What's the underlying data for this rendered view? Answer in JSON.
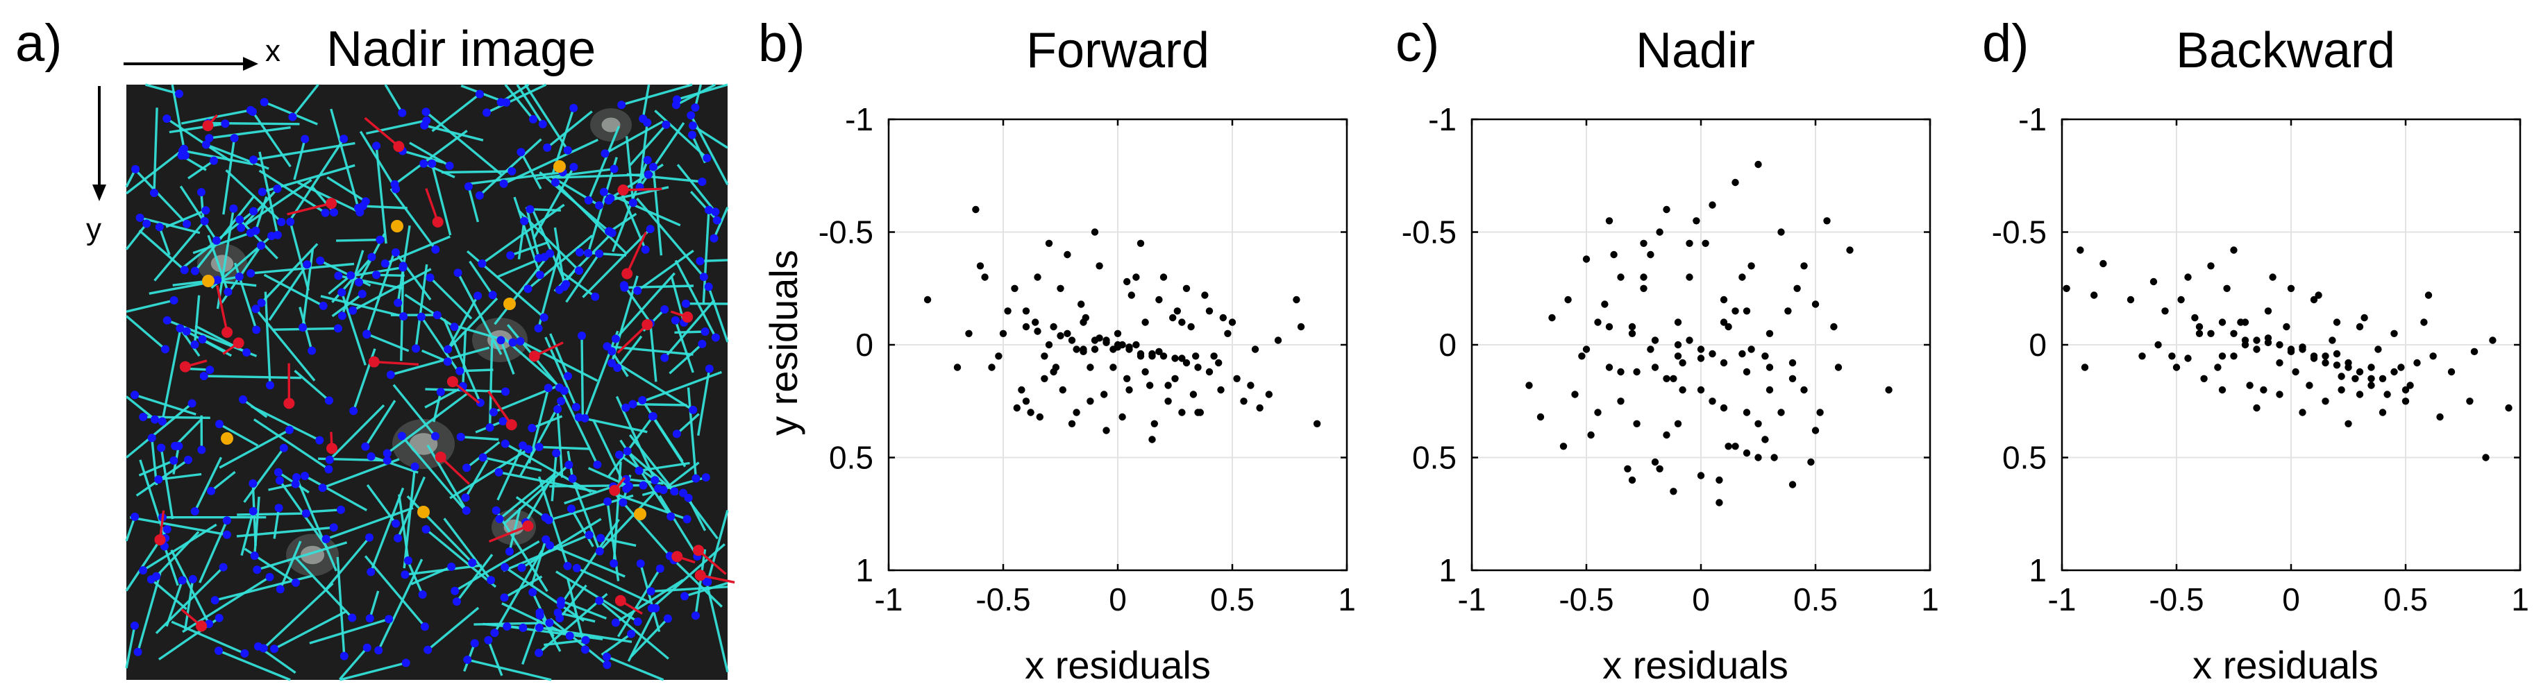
{
  "figure": {
    "panel_labels": [
      "a)",
      "b)",
      "c)",
      "d)"
    ],
    "image_panel": {
      "title": "Nadir image",
      "x_arrow_label": "x",
      "y_arrow_label": "y",
      "colors": {
        "background": "#1c1d1c",
        "vectors": "#34e0d8",
        "points": "#1414ff",
        "red_points": "#e0152a",
        "orange_points": "#f2a900"
      }
    }
  },
  "chart_data": [
    {
      "type": "scatter",
      "title": "Forward",
      "xlabel": "x residuals",
      "ylabel": "y residuals",
      "xlim": [
        -1,
        1
      ],
      "ylim": [
        -1,
        1
      ],
      "y_reversed": true,
      "xticks": [
        -1,
        -0.5,
        0,
        0.5,
        1
      ],
      "yticks": [
        -1,
        -0.5,
        0,
        0.5,
        1
      ],
      "xtick_labels": [
        "-1",
        "-0.5",
        "0",
        "0.5",
        "1"
      ],
      "ytick_labels": [
        "-1",
        "-0.5",
        "0",
        "0.5",
        "1"
      ],
      "grid": true,
      "point_color": "#000000",
      "x": [
        -0.83,
        -0.62,
        -0.6,
        -0.58,
        -0.52,
        -0.45,
        -0.4,
        -0.38,
        -0.3,
        -0.27,
        -0.22,
        -0.2,
        -0.15,
        -0.12,
        -0.1,
        -0.05,
        0.0,
        0.05,
        0.1,
        0.15,
        0.2,
        0.25,
        0.3,
        0.35,
        0.4,
        0.45,
        0.5,
        0.55,
        0.62,
        0.78,
        0.8,
        0.87,
        -0.55,
        -0.5,
        -0.42,
        -0.35,
        -0.32,
        -0.25,
        -0.18,
        -0.08,
        0.02,
        0.08,
        0.12,
        0.18,
        0.22,
        0.28,
        0.33,
        0.38,
        0.42,
        0.48,
        0.52,
        0.6,
        -0.48,
        -0.4,
        -0.36,
        -0.28,
        -0.24,
        -0.16,
        -0.06,
        0.04,
        0.14,
        0.24,
        0.34,
        0.44,
        0.46,
        0.28,
        -0.1,
        -0.2,
        0.1,
        0.2,
        -0.3,
        0.0,
        0.3,
        -0.4,
        0.4,
        0.05,
        -0.15,
        0.15,
        -0.05,
        0.25,
        -0.25,
        0.35,
        -0.35,
        0.58,
        0.66,
        0.7,
        -0.65,
        -0.7,
        -0.44,
        -0.34,
        -0.14,
        0.06,
        0.16,
        0.26,
        0.36,
        0.04,
        -0.02,
        -0.12,
        0.22,
        0.32,
        -0.22,
        -0.32,
        0.12,
        -0.02,
        0.08,
        -0.08,
        0.18,
        -0.18,
        0.28,
        -0.28,
        0.02,
        0.1,
        -0.1,
        0.0,
        0.05,
        -0.05,
        0.15,
        -0.15
      ],
      "y": [
        -0.2,
        -0.6,
        -0.35,
        -0.3,
        0.05,
        -0.25,
        -0.15,
        0.3,
        -0.45,
        0.1,
        -0.4,
        0.35,
        -0.1,
        0.25,
        -0.5,
        0.38,
        -0.05,
        0.2,
        -0.45,
        0.42,
        -0.3,
        0.15,
        -0.25,
        0.3,
        -0.15,
        0.2,
        -0.1,
        0.25,
        0.28,
        -0.2,
        -0.08,
        0.35,
        0.1,
        -0.05,
        0.2,
        -0.3,
        0.15,
        -0.25,
        0.3,
        -0.35,
        0.32,
        -0.3,
        0.12,
        -0.2,
        0.25,
        -0.1,
        0.22,
        -0.22,
        0.05,
        -0.05,
        0.15,
        0.02,
        -0.15,
        0.25,
        -0.1,
        0.12,
        0.2,
        -0.18,
        0.22,
        -0.28,
        0.18,
        -0.12,
        0.05,
        0.08,
        -0.12,
        0.3,
        0.02,
        -0.02,
        0.05,
        0.05,
        0.0,
        0.0,
        0.08,
        -0.08,
        0.12,
        0.02,
        0.02,
        0.04,
        -0.02,
        0.06,
        -0.04,
        0.1,
        -0.06,
        0.18,
        0.22,
        -0.02,
        -0.05,
        0.1,
        0.28,
        0.32,
        -0.12,
        -0.22,
        0.35,
        -0.15,
        0.3,
        0.15,
        0.1,
        0.1,
        0.18,
        -0.08,
        -0.05,
        0.05,
        -0.1,
        0.02,
        0.0,
        -0.03,
        0.03,
        0.02,
        0.06,
        -0.08,
        0.0,
        0.04,
        -0.02,
        0.01,
        0.01,
        -0.01,
        0.05,
        0.03
      ]
    },
    {
      "type": "scatter",
      "title": "Nadir",
      "xlabel": "x residuals",
      "ylabel": "",
      "xlim": [
        -1,
        1
      ],
      "ylim": [
        -1,
        1
      ],
      "y_reversed": true,
      "xticks": [
        -1,
        -0.5,
        0,
        0.5,
        1
      ],
      "yticks": [
        -1,
        -0.5,
        0,
        0.5,
        1
      ],
      "xtick_labels": [
        "-1",
        "-0.5",
        "0",
        "0.5",
        "1"
      ],
      "ytick_labels": [
        "-1",
        "-0.5",
        "0",
        "0.5",
        "1"
      ],
      "grid": true,
      "point_color": "#000000",
      "x": [
        -0.75,
        -0.7,
        -0.65,
        -0.6,
        -0.55,
        -0.5,
        -0.45,
        -0.4,
        -0.35,
        -0.3,
        -0.25,
        -0.2,
        -0.15,
        -0.1,
        -0.05,
        0.0,
        0.05,
        0.1,
        0.15,
        0.2,
        0.25,
        0.3,
        0.35,
        0.4,
        0.45,
        0.5,
        0.55,
        0.6,
        0.65,
        0.82,
        -0.58,
        -0.48,
        -0.38,
        -0.28,
        -0.18,
        -0.08,
        0.02,
        0.12,
        0.22,
        0.32,
        0.42,
        0.52,
        -0.52,
        -0.42,
        -0.32,
        -0.22,
        -0.12,
        -0.02,
        0.08,
        0.18,
        0.28,
        0.38,
        0.48,
        0.58,
        -0.35,
        -0.25,
        -0.15,
        -0.05,
        0.05,
        0.15,
        0.25,
        -0.3,
        -0.2,
        -0.1,
        0.0,
        0.1,
        0.2,
        0.3,
        -0.4,
        0.4,
        -0.45,
        0.45,
        -0.5,
        0.5,
        -0.15,
        0.15,
        -0.25,
        0.25,
        -0.35,
        0.35,
        0.0,
        -0.05,
        0.05,
        -0.1,
        0.1,
        -0.2,
        0.2,
        -0.3,
        0.3,
        -0.4,
        0.4,
        0.1,
        -0.1,
        0.2,
        0.22,
        0.28,
        -0.28,
        -0.18,
        0.08,
        -0.08,
        0.12,
        -0.12,
        0.18,
        0.0,
        -0.22
      ],
      "y": [
        0.18,
        0.32,
        -0.12,
        0.45,
        0.22,
        -0.38,
        0.3,
        -0.55,
        0.12,
        0.6,
        -0.3,
        0.52,
        -0.6,
        0.35,
        -0.45,
        0.58,
        -0.62,
        0.28,
        -0.72,
        0.48,
        -0.8,
        0.2,
        -0.5,
        0.62,
        -0.35,
        0.38,
        -0.55,
        0.1,
        -0.42,
        0.2,
        -0.2,
        0.4,
        -0.4,
        0.35,
        -0.5,
        0.2,
        -0.45,
        0.45,
        -0.35,
        0.5,
        -0.25,
        0.3,
        0.05,
        -0.18,
        0.55,
        -0.4,
        0.65,
        -0.55,
        0.7,
        -0.3,
        0.42,
        -0.15,
        0.52,
        -0.08,
        0.25,
        -0.25,
        0.15,
        -0.3,
        0.25,
        -0.15,
        0.35,
        -0.08,
        0.1,
        -0.1,
        0.2,
        -0.2,
        0.3,
        -0.05,
        0.1,
        0.15,
        -0.1,
        0.2,
        0.02,
        -0.18,
        0.4,
        0.45,
        -0.45,
        0.5,
        -0.3,
        0.3,
        0.02,
        -0.02,
        0.04,
        0.0,
        0.08,
        -0.02,
        0.12,
        -0.05,
        0.1,
        -0.08,
        0.08,
        -0.1,
        0.05,
        -0.15,
        0.02,
        0.05,
        0.12,
        0.55,
        0.6,
        0.08,
        -0.08,
        0.15,
        0.04,
        0.06,
        0.02
      ]
    },
    {
      "type": "scatter",
      "title": "Backward",
      "xlabel": "x residuals",
      "ylabel": "",
      "xlim": [
        -1,
        1
      ],
      "ylim": [
        -1,
        1
      ],
      "y_reversed": true,
      "xticks": [
        -1,
        -0.5,
        0,
        0.5,
        1
      ],
      "yticks": [
        -1,
        -0.5,
        0,
        0.5,
        1
      ],
      "xtick_labels": [
        "-1",
        "-0.5",
        "0",
        "0.5",
        "1"
      ],
      "ytick_labels": [
        "-1",
        "-0.5",
        "0",
        "0.5",
        "1"
      ],
      "grid": true,
      "point_color": "#000000",
      "x": [
        -0.98,
        -0.92,
        -0.9,
        -0.86,
        -0.82,
        -0.7,
        -0.65,
        -0.6,
        -0.55,
        -0.5,
        -0.45,
        -0.4,
        -0.35,
        -0.3,
        -0.25,
        -0.2,
        -0.15,
        -0.1,
        -0.05,
        0.0,
        0.05,
        0.1,
        0.15,
        0.2,
        0.25,
        0.3,
        0.35,
        0.4,
        0.45,
        0.5,
        0.55,
        0.6,
        0.65,
        0.7,
        0.78,
        0.8,
        0.85,
        0.88,
        0.95,
        -0.58,
        -0.48,
        -0.38,
        -0.28,
        -0.18,
        -0.08,
        0.02,
        0.12,
        0.22,
        0.32,
        0.42,
        0.52,
        0.62,
        -0.52,
        -0.42,
        -0.32,
        -0.22,
        -0.12,
        -0.02,
        0.08,
        0.18,
        0.28,
        0.38,
        0.48,
        0.58,
        -0.35,
        -0.25,
        -0.15,
        -0.05,
        0.05,
        0.15,
        0.25,
        0.35,
        -0.3,
        -0.2,
        -0.1,
        0.0,
        0.1,
        0.2,
        0.3,
        0.05,
        -0.05,
        0.1,
        -0.1,
        0.15,
        -0.15,
        0.2,
        -0.2,
        0.25,
        -0.25,
        0.0,
        0.4,
        -0.4,
        0.45,
        -0.45,
        0.5,
        0.35,
        0.3,
        0.22,
        -0.3
      ],
      "y": [
        -0.25,
        -0.42,
        0.1,
        -0.22,
        -0.36,
        -0.2,
        0.05,
        -0.28,
        -0.15,
        0.1,
        -0.3,
        -0.05,
        -0.35,
        0.2,
        -0.42,
        -0.1,
        0.28,
        -0.15,
        0.22,
        -0.25,
        0.3,
        -0.2,
        0.25,
        -0.1,
        0.35,
        -0.08,
        0.15,
        0.3,
        -0.05,
        0.2,
        0.08,
        -0.22,
        0.32,
        0.12,
        0.25,
        0.03,
        0.5,
        -0.02,
        0.28,
        0.0,
        -0.2,
        0.15,
        -0.25,
        0.18,
        -0.3,
        0.12,
        -0.22,
        0.2,
        -0.12,
        0.22,
        0.18,
        0.05,
        0.05,
        -0.12,
        0.1,
        -0.1,
        0.2,
        -0.08,
        0.18,
        -0.02,
        0.15,
        0.02,
        0.1,
        -0.1,
        -0.05,
        0.05,
        -0.02,
        0.08,
        0.02,
        0.05,
        0.08,
        0.1,
        0.05,
        0.0,
        -0.03,
        0.03,
        0.06,
        0.04,
        0.12,
        0.01,
        0.0,
        0.05,
        -0.01,
        0.08,
        0.02,
        0.09,
        -0.02,
        0.1,
        -0.05,
        0.02,
        0.15,
        -0.08,
        0.12,
        0.06,
        0.25,
        0.18,
        0.22,
        0.14,
        -0.1
      ]
    }
  ]
}
